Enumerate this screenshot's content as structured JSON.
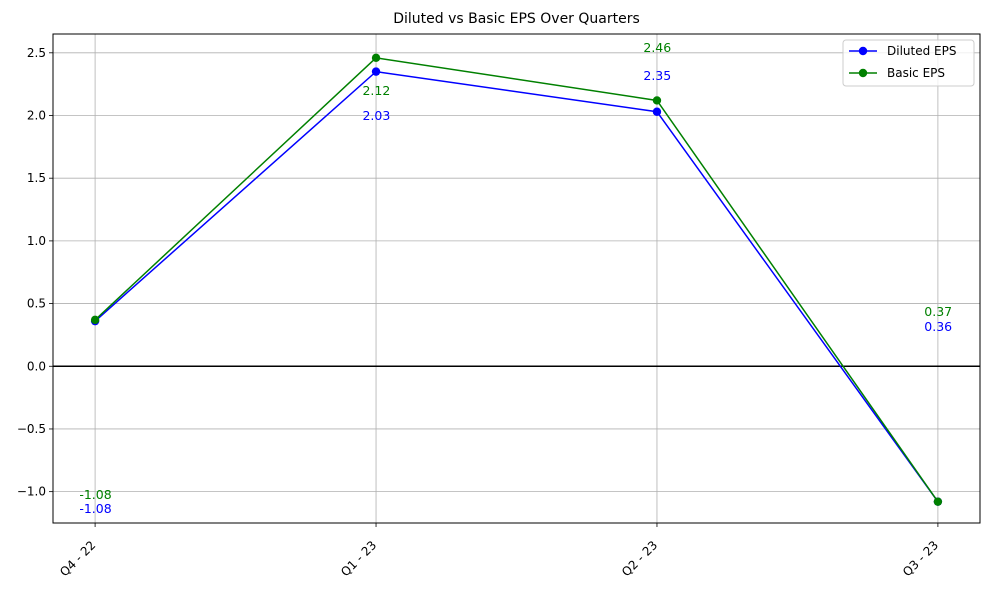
{
  "chart_data": {
    "type": "line",
    "title": "Diluted vs Basic EPS Over Quarters",
    "xlabel": "",
    "ylabel": "",
    "categories": [
      "Q4 - 22",
      "Q1 - 23",
      "Q2 - 23",
      "Q3 - 23"
    ],
    "series": [
      {
        "name": "Diluted EPS",
        "color": "#0000ff",
        "values": [
          0.36,
          2.35,
          2.03,
          -1.08
        ]
      },
      {
        "name": "Basic EPS",
        "color": "#008000",
        "values": [
          0.37,
          2.46,
          2.12,
          -1.08
        ]
      }
    ],
    "data_labels": [
      {
        "series": "Basic EPS",
        "text": "-1.08",
        "color": "#008000"
      },
      {
        "series": "Diluted EPS",
        "text": "-1.08",
        "color": "#0000ff"
      },
      {
        "series": "Basic EPS",
        "text": "2.12",
        "color": "#008000"
      },
      {
        "series": "Diluted EPS",
        "text": "2.03",
        "color": "#0000ff"
      },
      {
        "series": "Basic EPS",
        "text": "2.46",
        "color": "#008000"
      },
      {
        "series": "Diluted EPS",
        "text": "2.35",
        "color": "#0000ff"
      },
      {
        "series": "Basic EPS",
        "text": "0.37",
        "color": "#008000"
      },
      {
        "series": "Diluted EPS",
        "text": "0.36",
        "color": "#0000ff"
      }
    ],
    "ylim": [
      -1.25,
      2.65
    ],
    "yticks": [
      -1.0,
      -0.5,
      0.0,
      0.5,
      1.0,
      1.5,
      2.0,
      2.5
    ],
    "ytick_labels": [
      "−1.0",
      "−0.5",
      "0.0",
      "0.5",
      "1.0",
      "1.5",
      "2.0",
      "2.5"
    ],
    "grid": true,
    "zero_line": true,
    "legend_position": "top-right"
  }
}
